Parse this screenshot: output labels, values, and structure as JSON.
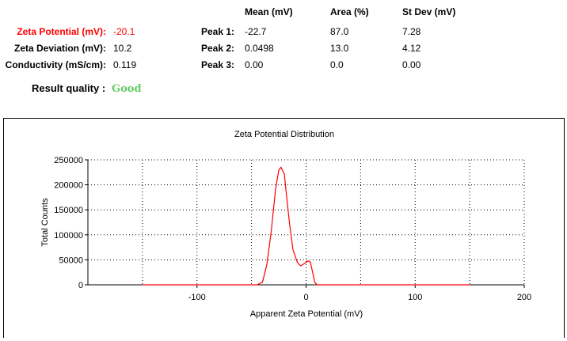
{
  "summary": {
    "rows": [
      {
        "label": "Zeta Potential (mV):",
        "value": "-20.1",
        "highlight": true
      },
      {
        "label": "Zeta Deviation (mV):",
        "value": "10.2",
        "highlight": false
      },
      {
        "label": "Conductivity (mS/cm):",
        "value": "0.119",
        "highlight": false
      }
    ],
    "quality_label": "Result quality :",
    "quality_value": "Good"
  },
  "peaks": {
    "headers": [
      "Mean (mV)",
      "Area (%)",
      "St Dev (mV)"
    ],
    "rows": [
      {
        "label": "Peak 1:",
        "mean": "-22.7",
        "area": "87.0",
        "stdev": "7.28"
      },
      {
        "label": "Peak 2:",
        "mean": "0.0498",
        "area": "13.0",
        "stdev": "4.12"
      },
      {
        "label": "Peak 3:",
        "mean": "0.00",
        "area": "0.0",
        "stdev": "0.00"
      }
    ]
  },
  "colors": {
    "highlight": "#ff0000",
    "good": "#66cc66",
    "series": "#ff0000"
  },
  "chart_data": {
    "type": "line",
    "title": "Zeta Potential Distribution",
    "xlabel": "Apparent Zeta Potential (mV)",
    "ylabel": "Total Counts",
    "xlim": [
      -200,
      200
    ],
    "ylim": [
      0,
      250000
    ],
    "xticks": [
      -100,
      0,
      100,
      200
    ],
    "yticks": [
      0,
      50000,
      100000,
      150000,
      200000,
      250000
    ],
    "grid": true,
    "series": [
      {
        "x": [
          -150,
          -45,
          -40,
          -36,
          -32,
          -28,
          -25,
          -23,
          -20,
          -18,
          -15,
          -12,
          -8,
          -5,
          -2,
          2,
          4,
          6,
          8,
          10,
          150
        ],
        "y": [
          0,
          0,
          5000,
          40000,
          105000,
          190000,
          230000,
          235000,
          222000,
          180000,
          120000,
          70000,
          45000,
          38000,
          42000,
          48000,
          45000,
          25000,
          5000,
          0,
          0
        ]
      }
    ]
  }
}
